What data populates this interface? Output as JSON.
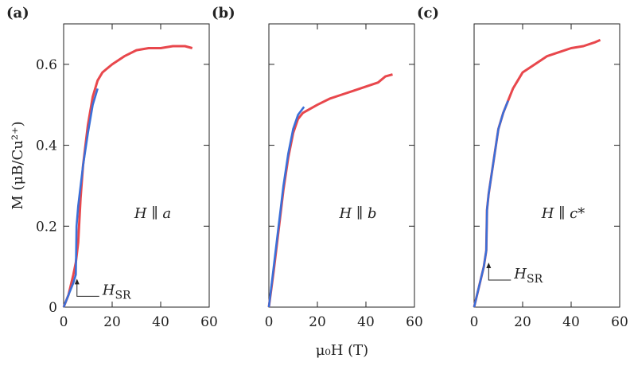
{
  "chart_data": [
    {
      "type": "line",
      "title": "(a)",
      "annotation": "H ∥ a",
      "ylabel": "M (μB/Cu²⁺)",
      "xlim": [
        0,
        60
      ],
      "xticks": [
        0,
        20,
        40,
        60
      ],
      "ylim": [
        0,
        0.7
      ],
      "yticks": [
        0,
        0.2,
        0.4,
        0.6
      ],
      "show_ytick_labels": true,
      "marker": {
        "label": "H",
        "sub": "SR",
        "x": 5.5,
        "y": 0.07
      },
      "series": [
        {
          "color": "#e8474c",
          "x": [
            0,
            2,
            4,
            5,
            6,
            7,
            8,
            10,
            12,
            14,
            16,
            18,
            20,
            25,
            30,
            35,
            40,
            45,
            50,
            53
          ],
          "values": [
            0,
            0.03,
            0.08,
            0.11,
            0.16,
            0.27,
            0.35,
            0.45,
            0.52,
            0.56,
            0.58,
            0.59,
            0.6,
            0.62,
            0.635,
            0.64,
            0.64,
            0.645,
            0.645,
            0.64
          ]
        },
        {
          "color": "#3a6fd8",
          "x": [
            0,
            2,
            4,
            5,
            5.3,
            6,
            8,
            10,
            12,
            14
          ],
          "values": [
            0,
            0.03,
            0.06,
            0.08,
            0.2,
            0.25,
            0.35,
            0.43,
            0.5,
            0.54
          ]
        }
      ]
    },
    {
      "type": "line",
      "title": "(b)",
      "annotation": "H ∥ b",
      "xlabel": "μ₀H (T)",
      "xlim": [
        0,
        60
      ],
      "xticks": [
        0,
        20,
        40,
        60
      ],
      "ylim": [
        0,
        0.7
      ],
      "yticks": [
        0,
        0.2,
        0.4,
        0.6
      ],
      "show_ytick_labels": false,
      "series": [
        {
          "color": "#e8474c",
          "x": [
            0,
            2,
            4,
            6,
            8,
            10,
            12,
            14,
            20,
            25,
            30,
            35,
            40,
            45,
            48,
            51
          ],
          "values": [
            0,
            0.09,
            0.19,
            0.29,
            0.37,
            0.43,
            0.465,
            0.48,
            0.5,
            0.515,
            0.525,
            0.535,
            0.545,
            0.555,
            0.57,
            0.575
          ]
        },
        {
          "color": "#3a6fd8",
          "x": [
            0,
            2,
            4,
            6,
            8,
            10,
            12,
            14.5
          ],
          "values": [
            0,
            0.1,
            0.2,
            0.3,
            0.38,
            0.44,
            0.475,
            0.495
          ]
        }
      ]
    },
    {
      "type": "line",
      "title": "(c)",
      "annotation": "H ∥ c*",
      "xlim": [
        0,
        60
      ],
      "xticks": [
        0,
        20,
        40,
        60
      ],
      "ylim": [
        0,
        0.7
      ],
      "yticks": [
        0,
        0.2,
        0.4,
        0.6
      ],
      "show_ytick_labels": false,
      "marker": {
        "label": "H",
        "sub": "SR",
        "x": 6,
        "y": 0.11
      },
      "series": [
        {
          "color": "#e8474c",
          "x": [
            0,
            2,
            4,
            5,
            5.3,
            6,
            8,
            10,
            12,
            14,
            16,
            18,
            20,
            25,
            30,
            35,
            40,
            45,
            50,
            52
          ],
          "values": [
            0,
            0.05,
            0.1,
            0.14,
            0.24,
            0.28,
            0.36,
            0.44,
            0.48,
            0.51,
            0.54,
            0.56,
            0.58,
            0.6,
            0.62,
            0.63,
            0.64,
            0.645,
            0.655,
            0.66
          ]
        },
        {
          "color": "#3a6fd8",
          "x": [
            0,
            2,
            4,
            5,
            5.3,
            6,
            8,
            10,
            12,
            14
          ],
          "values": [
            0,
            0.05,
            0.1,
            0.14,
            0.24,
            0.28,
            0.36,
            0.44,
            0.48,
            0.51
          ]
        }
      ]
    }
  ]
}
